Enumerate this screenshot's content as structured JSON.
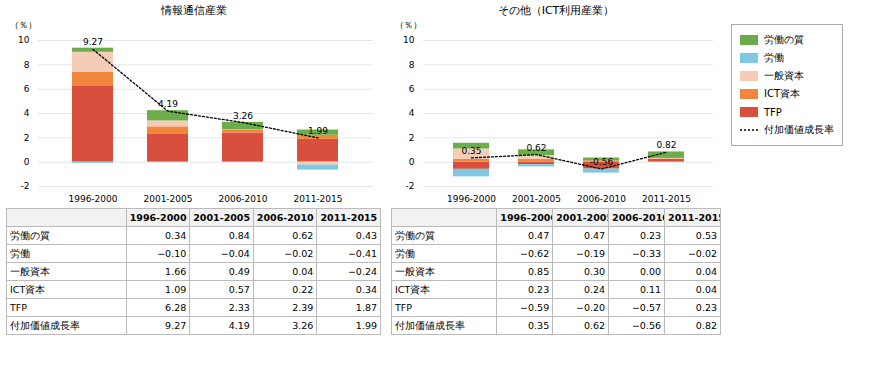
{
  "chart_data": [
    {
      "type": "bar",
      "stacked": true,
      "title": "情報通信産業",
      "ylabel": "（％）",
      "categories": [
        "1996-2000",
        "2001-2005",
        "2006-2010",
        "2011-2015"
      ],
      "series": [
        {
          "name": "TFP",
          "color": "#d94f3d",
          "values": [
            6.28,
            2.33,
            2.39,
            1.87
          ]
        },
        {
          "name": "ICT資本",
          "color": "#f0873d",
          "values": [
            1.09,
            0.57,
            0.22,
            0.34
          ]
        },
        {
          "name": "一般資本",
          "color": "#f5cdb6",
          "values": [
            1.66,
            0.49,
            0.04,
            -0.24
          ]
        },
        {
          "name": "労働",
          "color": "#7ec8e3",
          "values": [
            -0.1,
            -0.04,
            -0.02,
            -0.41
          ]
        },
        {
          "name": "労働の質",
          "color": "#6aad4a",
          "values": [
            0.34,
            0.84,
            0.62,
            0.43
          ]
        },
        {
          "name": "付加価値成長率",
          "type": "line",
          "line_style": "dotted",
          "color": "#000000",
          "data_labels": true,
          "values": [
            9.27,
            4.19,
            3.26,
            1.99
          ]
        }
      ],
      "ylim": [
        -2,
        10
      ],
      "yticks": [
        -2,
        0,
        2,
        4,
        6,
        8,
        10
      ],
      "grid": true,
      "table": [
        {
          "name": "労働の質",
          "values": [
            "0.34",
            "0.84",
            "0.62",
            "0.43"
          ]
        },
        {
          "name": "労働",
          "values": [
            "−0.10",
            "−0.04",
            "−0.02",
            "−0.41"
          ]
        },
        {
          "name": "一般資本",
          "values": [
            "1.66",
            "0.49",
            "0.04",
            "−0.24"
          ]
        },
        {
          "name": "ICT資本",
          "values": [
            "1.09",
            "0.57",
            "0.22",
            "0.34"
          ]
        },
        {
          "name": "TFP",
          "values": [
            "6.28",
            "2.33",
            "2.39",
            "1.87"
          ]
        },
        {
          "name": "付加価値成長率",
          "values": [
            "9.27",
            "4.19",
            "3.26",
            "1.99"
          ]
        }
      ]
    },
    {
      "type": "bar",
      "stacked": true,
      "title": "その他（ICT利用産業）",
      "ylabel": "（％）",
      "categories": [
        "1996-2000",
        "2001-2005",
        "2006-2010",
        "2011-2015"
      ],
      "series": [
        {
          "name": "TFP",
          "color": "#d94f3d",
          "values": [
            -0.59,
            -0.2,
            -0.57,
            0.23
          ]
        },
        {
          "name": "ICT資本",
          "color": "#f0873d",
          "values": [
            0.23,
            0.24,
            0.11,
            0.04
          ]
        },
        {
          "name": "一般資本",
          "color": "#f5cdb6",
          "values": [
            0.85,
            0.3,
            0.0,
            0.04
          ]
        },
        {
          "name": "労働",
          "color": "#7ec8e3",
          "values": [
            -0.62,
            -0.19,
            -0.33,
            -0.02
          ]
        },
        {
          "name": "労働の質",
          "color": "#6aad4a",
          "values": [
            0.47,
            0.47,
            0.23,
            0.53
          ]
        },
        {
          "name": "付加価値成長率",
          "type": "line",
          "line_style": "dotted",
          "color": "#000000",
          "data_labels": true,
          "values": [
            0.35,
            0.62,
            -0.56,
            0.82
          ]
        }
      ],
      "ylim": [
        -2,
        10
      ],
      "yticks": [
        -2,
        0,
        2,
        4,
        6,
        8,
        10
      ],
      "grid": true,
      "legend": "right",
      "table": [
        {
          "name": "労働の質",
          "values": [
            "0.47",
            "0.47",
            "0.23",
            "0.53"
          ]
        },
        {
          "name": "労働",
          "values": [
            "−0.62",
            "−0.19",
            "−0.33",
            "−0.02"
          ]
        },
        {
          "name": "一般資本",
          "values": [
            "0.85",
            "0.30",
            "0.00",
            "0.04"
          ]
        },
        {
          "name": "ICT資本",
          "values": [
            "0.23",
            "0.24",
            "0.11",
            "0.04"
          ]
        },
        {
          "name": "TFP",
          "values": [
            "−0.59",
            "−0.20",
            "−0.57",
            "0.23"
          ]
        },
        {
          "name": "付加価値成長率",
          "values": [
            "0.35",
            "0.62",
            "−0.56",
            "0.82"
          ]
        }
      ]
    }
  ]
}
